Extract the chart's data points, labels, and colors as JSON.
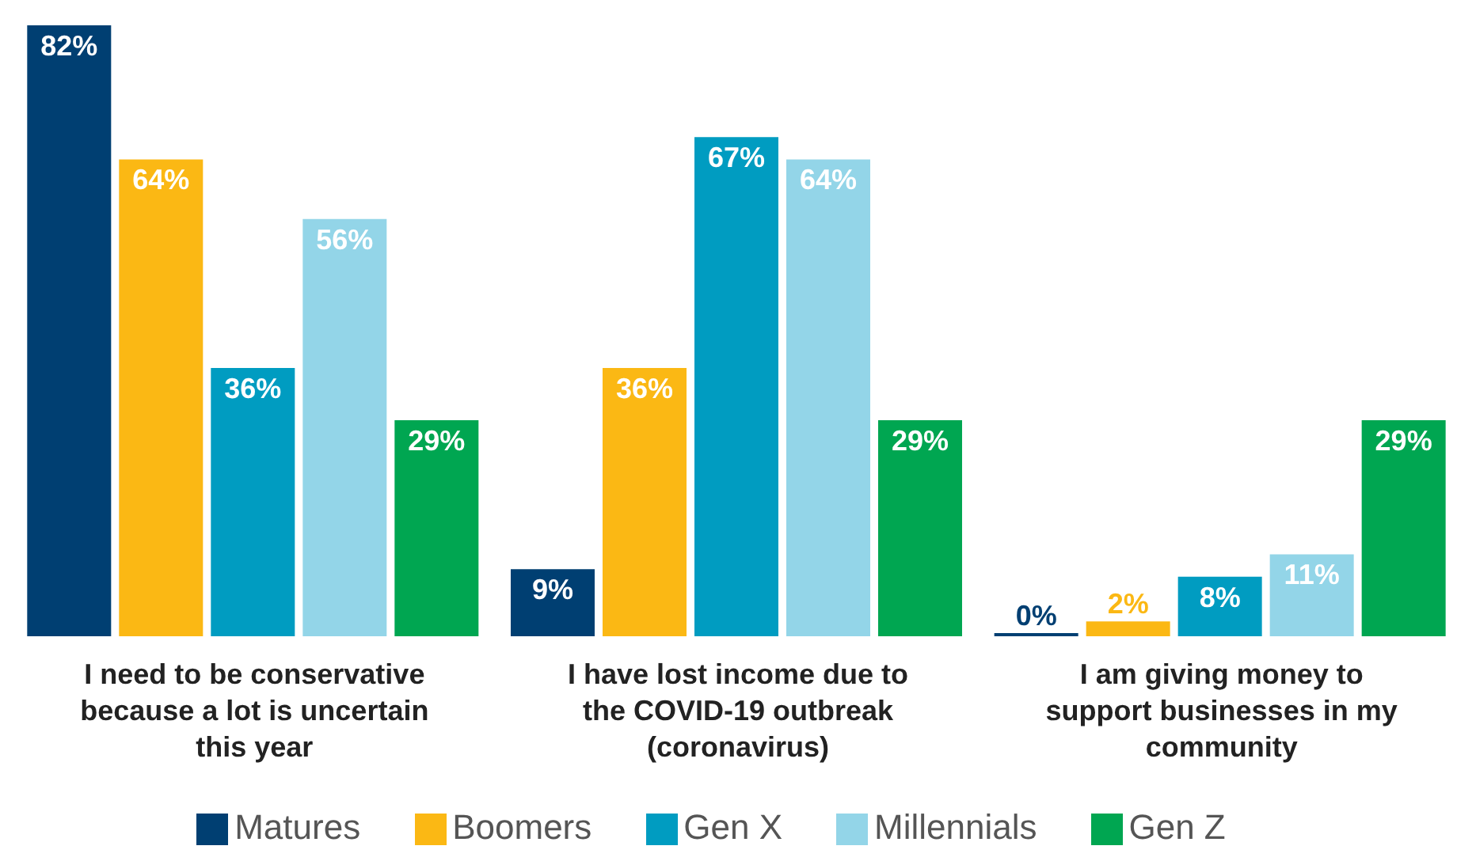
{
  "chart_data": {
    "type": "bar",
    "categories": [
      "I need to be conservative because a lot is uncertain this year",
      "I have lost income due to the COVID-19 outbreak (coronavirus)",
      "I am giving money to support businesses in my community"
    ],
    "series": [
      {
        "name": "Matures",
        "color": "#003f72",
        "values": [
          82,
          9,
          0
        ],
        "value_labels": [
          "82%",
          "9%",
          "0%"
        ]
      },
      {
        "name": "Boomers",
        "color": "#fbb814",
        "values": [
          64,
          36,
          2
        ],
        "value_labels": [
          "64%",
          "36%",
          "2%"
        ]
      },
      {
        "name": "Gen X",
        "color": "#009cc1",
        "values": [
          36,
          67,
          8
        ],
        "value_labels": [
          "36%",
          "67%",
          "8%"
        ]
      },
      {
        "name": "Millennials",
        "color": "#93d5e8",
        "values": [
          56,
          64,
          11
        ],
        "value_labels": [
          "56%",
          "64%",
          "11%"
        ]
      },
      {
        "name": "Gen Z",
        "color": "#00a651",
        "values": [
          29,
          29,
          29
        ],
        "value_labels": [
          "29%",
          "29%",
          "29%"
        ]
      }
    ],
    "legend": "bottom",
    "grid": false
  }
}
